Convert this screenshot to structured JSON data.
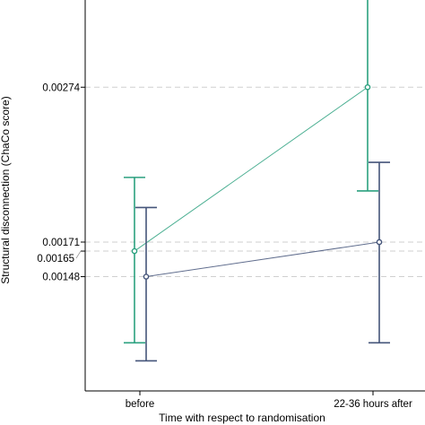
{
  "chart_data": {
    "type": "line",
    "title": "",
    "xlabel": "Time with respect to randomisation",
    "ylabel": "Structural disconnection (ChaCo score)",
    "categories": [
      "before",
      "22-36 hours after"
    ],
    "ylim": [
      0.00072,
      0.00332
    ],
    "y_ticks": [
      {
        "value": 0.00274,
        "label": "0.00274"
      },
      {
        "value": 0.00171,
        "label": "0.00171"
      },
      {
        "value": 0.00165,
        "label": "0.00165"
      },
      {
        "value": 0.00148,
        "label": "0.00148"
      }
    ],
    "grid": "dashed reference lines at tick values",
    "legend": "none",
    "series": [
      {
        "color": "#2ba17f",
        "values": [
          0.00165,
          0.00274
        ],
        "ci_low": [
          0.00104,
          0.00205
        ],
        "ci_high": [
          0.00214,
          0.00335
        ]
      },
      {
        "color": "#45557a",
        "values": [
          0.00148,
          0.00171
        ],
        "ci_low": [
          0.00092,
          0.00104
        ],
        "ci_high": [
          0.00194,
          0.00224
        ]
      }
    ]
  }
}
